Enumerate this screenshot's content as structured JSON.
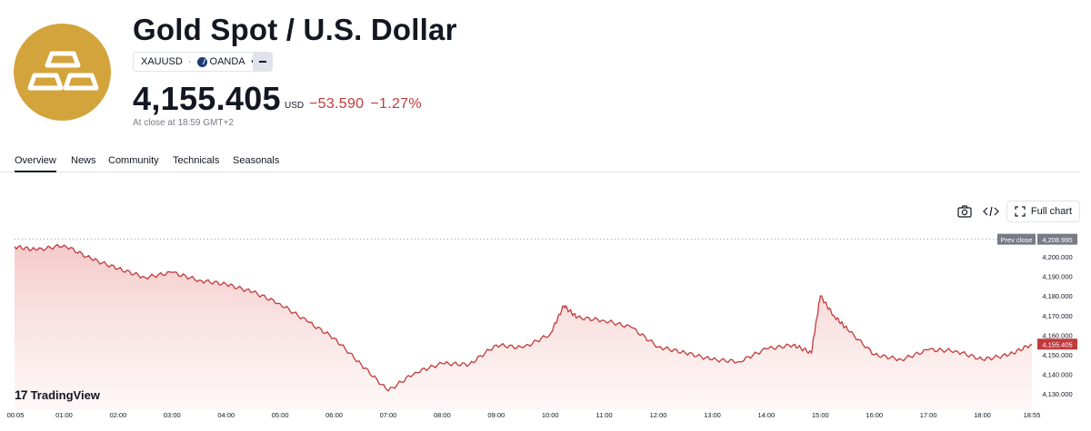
{
  "header": {
    "title": "Gold Spot / U.S. Dollar",
    "symbol": "XAUUSD",
    "separator": "·",
    "broker": "OANDA",
    "price": "4,155.405",
    "currency": "USD",
    "change": "−53.590",
    "change_percent": "−1.27%",
    "close_note": "At close at 18:59 GMT+2",
    "logo_icon": "gold-bars-icon",
    "change_color": "#c23a3a"
  },
  "tabs": [
    {
      "label": "Overview",
      "active": true
    },
    {
      "label": "News",
      "active": false
    },
    {
      "label": "Community",
      "active": false
    },
    {
      "label": "Technicals",
      "active": false
    },
    {
      "label": "Seasonals",
      "active": false
    }
  ],
  "toolbar": {
    "snapshot_icon": "camera-icon",
    "embed_icon": "code-icon",
    "fullchart_icon": "expand-icon",
    "fullchart_label": "Full chart"
  },
  "chart_data": {
    "type": "area",
    "series": [
      {
        "name": "XAUUSD",
        "color": "#c23a3a"
      }
    ],
    "x": [
      "00:05",
      "00:30",
      "01:00",
      "01:30",
      "02:00",
      "02:30",
      "03:00",
      "03:30",
      "04:00",
      "04:30",
      "05:00",
      "05:30",
      "06:00",
      "06:30",
      "07:00",
      "07:30",
      "08:00",
      "08:30",
      "09:00",
      "09:30",
      "10:00",
      "10:15",
      "10:30",
      "11:00",
      "11:30",
      "12:00",
      "12:30",
      "13:00",
      "13:30",
      "14:00",
      "14:30",
      "14:50",
      "15:00",
      "15:15",
      "15:30",
      "16:00",
      "16:30",
      "17:00",
      "17:30",
      "18:00",
      "18:30",
      "18:55"
    ],
    "y": [
      4205.2,
      4203.5,
      4206.0,
      4199.0,
      4194.0,
      4189.5,
      4192.0,
      4188.0,
      4186.0,
      4182.0,
      4176.0,
      4167.0,
      4158.5,
      4145.0,
      4131.5,
      4141.0,
      4145.5,
      4145.0,
      4155.0,
      4153.5,
      4160.5,
      4175.0,
      4169.0,
      4167.5,
      4164.0,
      4154.0,
      4151.0,
      4147.5,
      4146.5,
      4153.0,
      4155.0,
      4151.0,
      4180.0,
      4170.0,
      4163.0,
      4150.0,
      4147.5,
      4152.5,
      4152.0,
      4147.5,
      4150.0,
      4155.405
    ],
    "x_ticks": [
      "00:05",
      "01:00",
      "02:00",
      "03:00",
      "04:00",
      "05:00",
      "06:00",
      "07:00",
      "08:00",
      "09:00",
      "10:00",
      "11:00",
      "12:00",
      "13:00",
      "14:00",
      "15:00",
      "16:00",
      "17:00",
      "18:00",
      "18:55"
    ],
    "y_ticks": [
      "4,200.000",
      "4,190.000",
      "4,180.000",
      "4,170.000",
      "4,160.000",
      "4,150.000",
      "4,140.000",
      "4,130.000"
    ],
    "y_tick_values": [
      4200,
      4190,
      4180,
      4170,
      4160,
      4150,
      4140,
      4130
    ],
    "ylim": [
      4124,
      4213
    ],
    "prev_close": {
      "label": "Prev close",
      "value": 4208.995,
      "text": "4,208.995"
    },
    "last": {
      "value": 4155.405,
      "text": "4,155.405"
    },
    "grid": false
  },
  "branding": {
    "logo_mark": "17",
    "logo_text": "TradingView"
  }
}
